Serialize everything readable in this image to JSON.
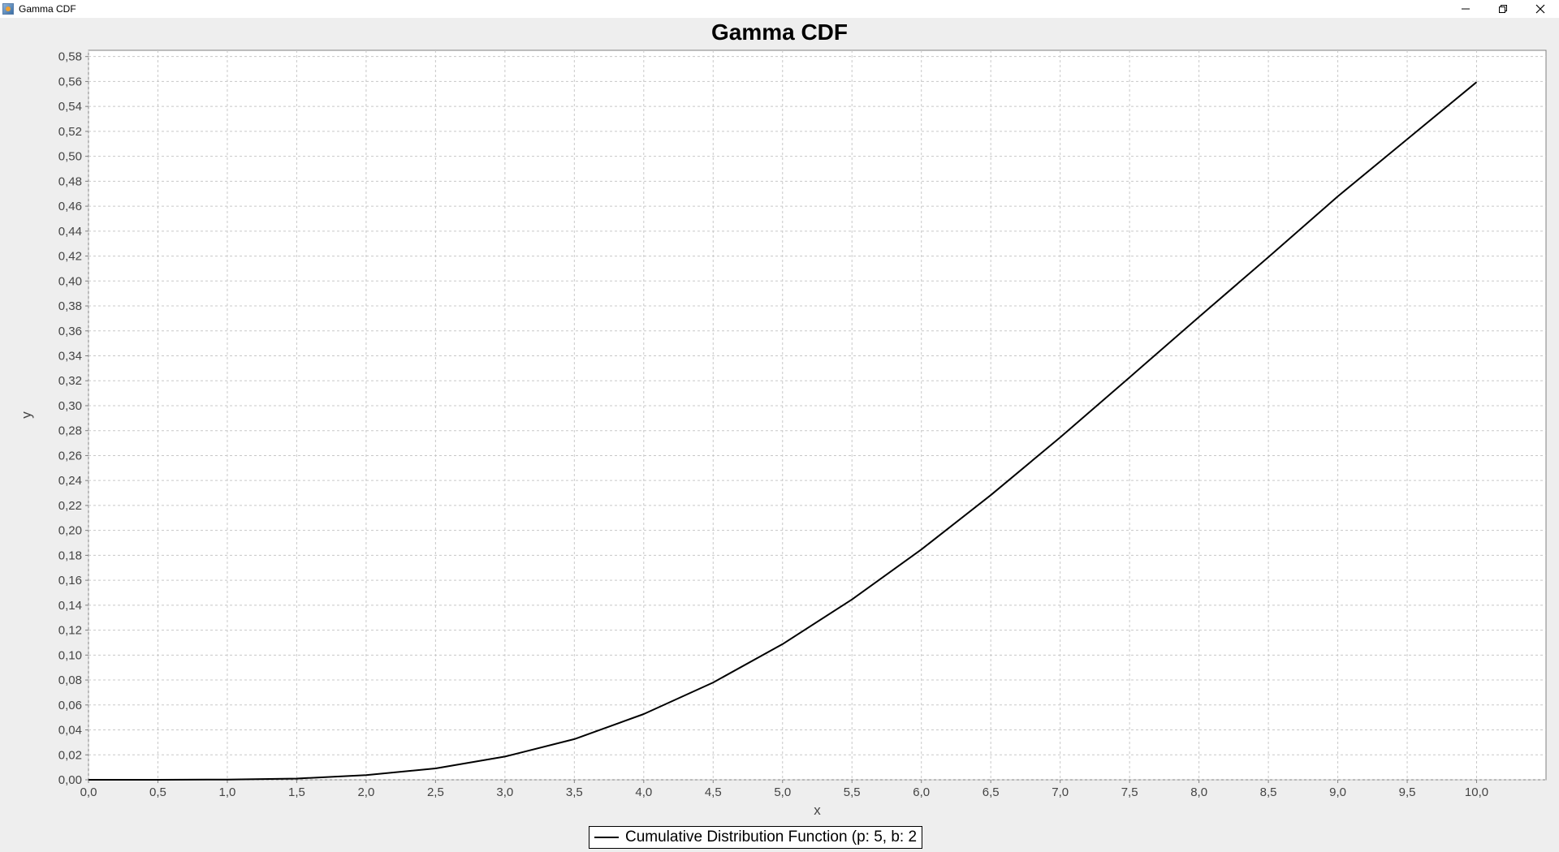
{
  "window": {
    "title": "Gamma CDF",
    "minimize_icon": "minimize-icon",
    "restore_icon": "restore-icon",
    "close_icon": "close-icon"
  },
  "chart_data": {
    "type": "line",
    "title": "Gamma CDF",
    "xlabel": "x",
    "ylabel": "y",
    "xlim": [
      0,
      10.5
    ],
    "ylim": [
      0,
      0.585
    ],
    "grid": true,
    "legend_position": "bottom-center",
    "x_ticks": [
      "0,0",
      "0,5",
      "1,0",
      "1,5",
      "2,0",
      "2,5",
      "3,0",
      "3,5",
      "4,0",
      "4,5",
      "5,0",
      "5,5",
      "6,0",
      "6,5",
      "7,0",
      "7,5",
      "8,0",
      "8,5",
      "9,0",
      "9,5",
      "10,0"
    ],
    "y_ticks": [
      "0,00",
      "0,02",
      "0,04",
      "0,06",
      "0,08",
      "0,10",
      "0,12",
      "0,14",
      "0,16",
      "0,18",
      "0,20",
      "0,22",
      "0,24",
      "0,26",
      "0,28",
      "0,30",
      "0,32",
      "0,34",
      "0,36",
      "0,38",
      "0,40",
      "0,42",
      "0,44",
      "0,46",
      "0,48",
      "0,50",
      "0,52",
      "0,54",
      "0,56",
      "0,58"
    ],
    "series": [
      {
        "name": "Cumulative Distribution Function (p: 5, b: 2",
        "color": "#000000",
        "x": [
          0.0,
          0.5,
          1.0,
          1.5,
          2.0,
          2.5,
          3.0,
          3.5,
          4.0,
          4.5,
          5.0,
          5.5,
          6.0,
          6.5,
          7.0,
          7.5,
          8.0,
          8.5,
          9.0,
          9.5,
          10.0
        ],
        "y": [
          0.0,
          0.0,
          0.0002,
          0.001,
          0.0037,
          0.0091,
          0.0186,
          0.0326,
          0.0527,
          0.078,
          0.1088,
          0.1446,
          0.1847,
          0.2283,
          0.2746,
          0.3227,
          0.3712,
          0.4191,
          0.4679,
          0.5137,
          0.5595
        ]
      }
    ]
  }
}
